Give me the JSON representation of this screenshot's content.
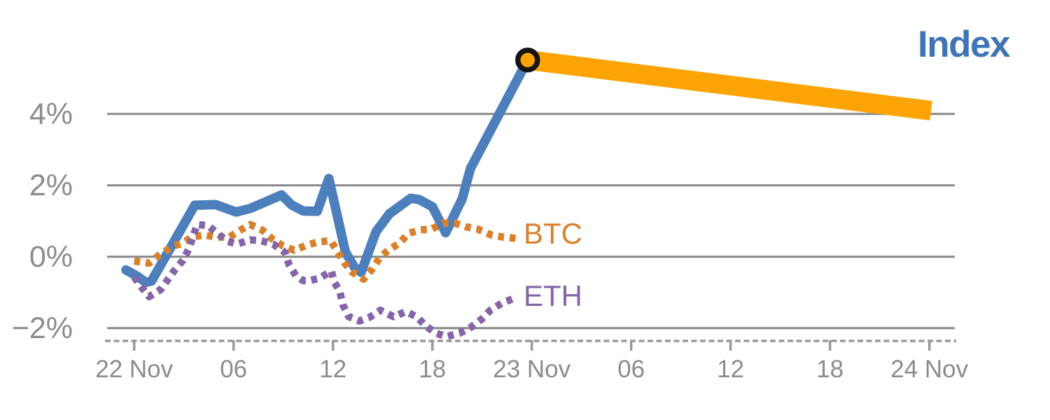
{
  "colors": {
    "index_line": "#4d7fbc",
    "index_label": "#3f74b6",
    "btc": "#d8812c",
    "eth": "#8365a8",
    "projection": "#fca406",
    "marker_ring": "#141414",
    "grid": "#888888",
    "axis": "#999999",
    "tick_text": "#8c8c8c",
    "background": "#ffffff"
  },
  "chart_data": {
    "type": "line",
    "title": "Index",
    "x_unit_note": "hours since 22 Nov 00:00",
    "grid": "horizontal gridlines only",
    "legend": "inline labels at line ends",
    "ylim": [
      -2.6,
      6.0
    ],
    "xticks": [
      {
        "h": 0,
        "label": "22 Nov"
      },
      {
        "h": 6,
        "label": "06"
      },
      {
        "h": 12,
        "label": "12"
      },
      {
        "h": 18,
        "label": "18"
      },
      {
        "h": 24,
        "label": "23 Nov"
      },
      {
        "h": 30,
        "label": "06"
      },
      {
        "h": 36,
        "label": "12"
      },
      {
        "h": 42,
        "label": "18"
      },
      {
        "h": 48,
        "label": "24 Nov"
      }
    ],
    "yticks": [
      {
        "v": 4,
        "label": "4%"
      },
      {
        "v": 2,
        "label": "2%"
      },
      {
        "v": 0,
        "label": "0%"
      },
      {
        "v": -2,
        "label": "−2%"
      }
    ],
    "series": [
      {
        "name": "Index",
        "label": "Index",
        "style": "solid",
        "color": "#4d7fbc",
        "width": 13.5,
        "points": [
          [
            -0.5,
            -0.37
          ],
          [
            0.2,
            -0.55
          ],
          [
            0.7,
            -0.72
          ],
          [
            1.05,
            -0.68
          ],
          [
            3.65,
            1.44
          ],
          [
            4.9,
            1.46
          ],
          [
            6.15,
            1.25
          ],
          [
            7.0,
            1.35
          ],
          [
            8.9,
            1.73
          ],
          [
            9.5,
            1.45
          ],
          [
            10.2,
            1.28
          ],
          [
            11.05,
            1.27
          ],
          [
            11.75,
            2.19
          ],
          [
            12.75,
            0.13
          ],
          [
            13.3,
            -0.3
          ],
          [
            13.7,
            -0.44
          ],
          [
            14.6,
            0.7
          ],
          [
            15.4,
            1.2
          ],
          [
            16.7,
            1.64
          ],
          [
            17.2,
            1.6
          ],
          [
            18.0,
            1.4
          ],
          [
            18.8,
            0.67
          ],
          [
            19.8,
            1.62
          ],
          [
            20.3,
            2.47
          ],
          [
            23.75,
            5.51
          ]
        ]
      },
      {
        "name": "BTC",
        "label": "BTC",
        "style": "dotted",
        "color": "#d8812c",
        "width": 10.5,
        "points": [
          [
            0,
            -0.12
          ],
          [
            0.9,
            -0.18
          ],
          [
            1.45,
            0.02
          ],
          [
            2.35,
            0.3
          ],
          [
            2.9,
            0.37
          ],
          [
            3.5,
            0.55
          ],
          [
            4.25,
            0.61
          ],
          [
            4.9,
            0.55
          ],
          [
            5.75,
            0.55
          ],
          [
            6.4,
            0.74
          ],
          [
            7.0,
            0.9
          ],
          [
            7.75,
            0.74
          ],
          [
            8.3,
            0.51
          ],
          [
            8.95,
            0.31
          ],
          [
            9.65,
            0.18
          ],
          [
            10.35,
            0.31
          ],
          [
            11.05,
            0.41
          ],
          [
            11.85,
            0.45
          ],
          [
            12.25,
            0.16
          ],
          [
            12.7,
            -0.18
          ],
          [
            13.15,
            -0.43
          ],
          [
            13.85,
            -0.63
          ],
          [
            14.4,
            -0.33
          ],
          [
            14.8,
            -0.04
          ],
          [
            15.35,
            0.19
          ],
          [
            16.0,
            0.37
          ],
          [
            16.55,
            0.65
          ],
          [
            17.25,
            0.75
          ],
          [
            17.95,
            0.77
          ],
          [
            18.65,
            0.94
          ],
          [
            19.35,
            0.94
          ],
          [
            20.0,
            0.84
          ],
          [
            20.75,
            0.77
          ],
          [
            21.55,
            0.61
          ],
          [
            22.25,
            0.55
          ],
          [
            23.1,
            0.51
          ]
        ]
      },
      {
        "name": "ETH",
        "label": "ETH",
        "style": "dotted",
        "color": "#8365a8",
        "width": 10.5,
        "points": [
          [
            0,
            -0.57
          ],
          [
            0.45,
            -0.86
          ],
          [
            0.9,
            -1.12
          ],
          [
            1.6,
            -0.92
          ],
          [
            2.45,
            -0.37
          ],
          [
            2.95,
            -0.1
          ],
          [
            3.3,
            0.22
          ],
          [
            3.8,
            0.9
          ],
          [
            4.45,
            0.87
          ],
          [
            5.0,
            0.67
          ],
          [
            5.55,
            0.45
          ],
          [
            6.2,
            0.35
          ],
          [
            7.0,
            0.47
          ],
          [
            7.65,
            0.45
          ],
          [
            8.4,
            0.35
          ],
          [
            9.1,
            0.12
          ],
          [
            9.35,
            -0.22
          ],
          [
            9.75,
            -0.53
          ],
          [
            10.2,
            -0.67
          ],
          [
            10.6,
            -0.67
          ],
          [
            11.2,
            -0.6
          ],
          [
            11.9,
            -0.4
          ],
          [
            12.1,
            -0.73
          ],
          [
            12.4,
            -0.96
          ],
          [
            12.6,
            -1.35
          ],
          [
            12.95,
            -1.68
          ],
          [
            13.6,
            -1.8
          ],
          [
            14.2,
            -1.7
          ],
          [
            14.85,
            -1.5
          ],
          [
            15.65,
            -1.68
          ],
          [
            16.4,
            -1.54
          ],
          [
            17.05,
            -1.68
          ],
          [
            17.6,
            -1.94
          ],
          [
            18.2,
            -2.14
          ],
          [
            18.85,
            -2.24
          ],
          [
            19.65,
            -2.14
          ],
          [
            20.35,
            -1.97
          ],
          [
            21.0,
            -1.74
          ],
          [
            21.5,
            -1.5
          ],
          [
            22.2,
            -1.3
          ],
          [
            22.95,
            -1.16
          ]
        ]
      }
    ],
    "projection": {
      "series": "Index",
      "color": "#fca406",
      "width": 28,
      "from": [
        23.75,
        5.51
      ],
      "to": [
        48.1,
        4.09
      ]
    },
    "marker": {
      "at": [
        23.75,
        5.51
      ],
      "fill": "#fca406",
      "ring": "#141414",
      "radius": 14,
      "ring_width": 7.5
    }
  }
}
